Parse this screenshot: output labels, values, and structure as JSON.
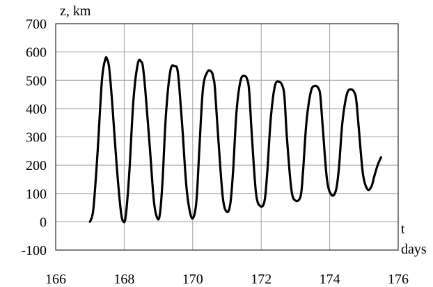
{
  "chart_data": {
    "type": "line",
    "title": "",
    "ylabel": "z, km",
    "xlabel_line1": "t",
    "xlabel_line2": "days",
    "xlim": [
      166,
      176
    ],
    "ylim": [
      -100,
      700
    ],
    "x_ticks": [
      166,
      168,
      170,
      172,
      174,
      176
    ],
    "y_ticks": [
      -100,
      0,
      100,
      200,
      300,
      400,
      500,
      600,
      700
    ],
    "grid": true,
    "legend": "none",
    "line_color": "#000000",
    "series": [
      {
        "x": [
          167.0,
          167.1,
          167.22,
          167.35,
          167.45,
          167.5,
          167.56,
          167.65,
          167.78,
          167.9,
          167.98,
          168.05,
          168.15,
          168.27,
          168.4,
          168.5,
          168.55,
          168.62,
          168.75,
          168.87,
          168.98,
          169.05,
          169.12,
          169.22,
          169.35,
          169.48,
          169.55,
          169.6,
          169.7,
          169.82,
          169.95,
          170.05,
          170.12,
          170.2,
          170.3,
          170.43,
          170.55,
          170.6,
          170.65,
          170.75,
          170.88,
          171.0,
          171.1,
          171.18,
          171.28,
          171.4,
          171.52,
          171.6,
          171.65,
          171.73,
          171.85,
          171.98,
          172.1,
          172.18,
          172.28,
          172.4,
          172.52,
          172.62,
          172.68,
          172.75,
          172.88,
          173.0,
          173.15,
          173.22,
          173.32,
          173.45,
          173.57,
          173.68,
          173.73,
          173.8,
          173.92,
          174.05,
          174.18,
          174.27,
          174.37,
          174.5,
          174.62,
          174.73,
          174.78,
          174.85,
          174.97,
          175.1,
          175.22,
          175.3,
          175.4,
          175.5
        ],
        "y": [
          0,
          45,
          240,
          500,
          575,
          575,
          545,
          420,
          200,
          40,
          0,
          25,
          175,
          430,
          560,
          565,
          545,
          460,
          260,
          70,
          10,
          35,
          145,
          380,
          535,
          550,
          540,
          490,
          330,
          120,
          20,
          25,
          90,
          270,
          470,
          530,
          530,
          510,
          470,
          290,
          85,
          35,
          65,
          180,
          390,
          500,
          515,
          500,
          460,
          300,
          100,
          55,
          75,
          180,
          365,
          480,
          495,
          480,
          440,
          300,
          115,
          75,
          90,
          175,
          350,
          460,
          480,
          470,
          440,
          330,
          150,
          95,
          110,
          190,
          350,
          450,
          468,
          455,
          425,
          330,
          170,
          115,
          125,
          160,
          200,
          228
        ]
      }
    ]
  }
}
